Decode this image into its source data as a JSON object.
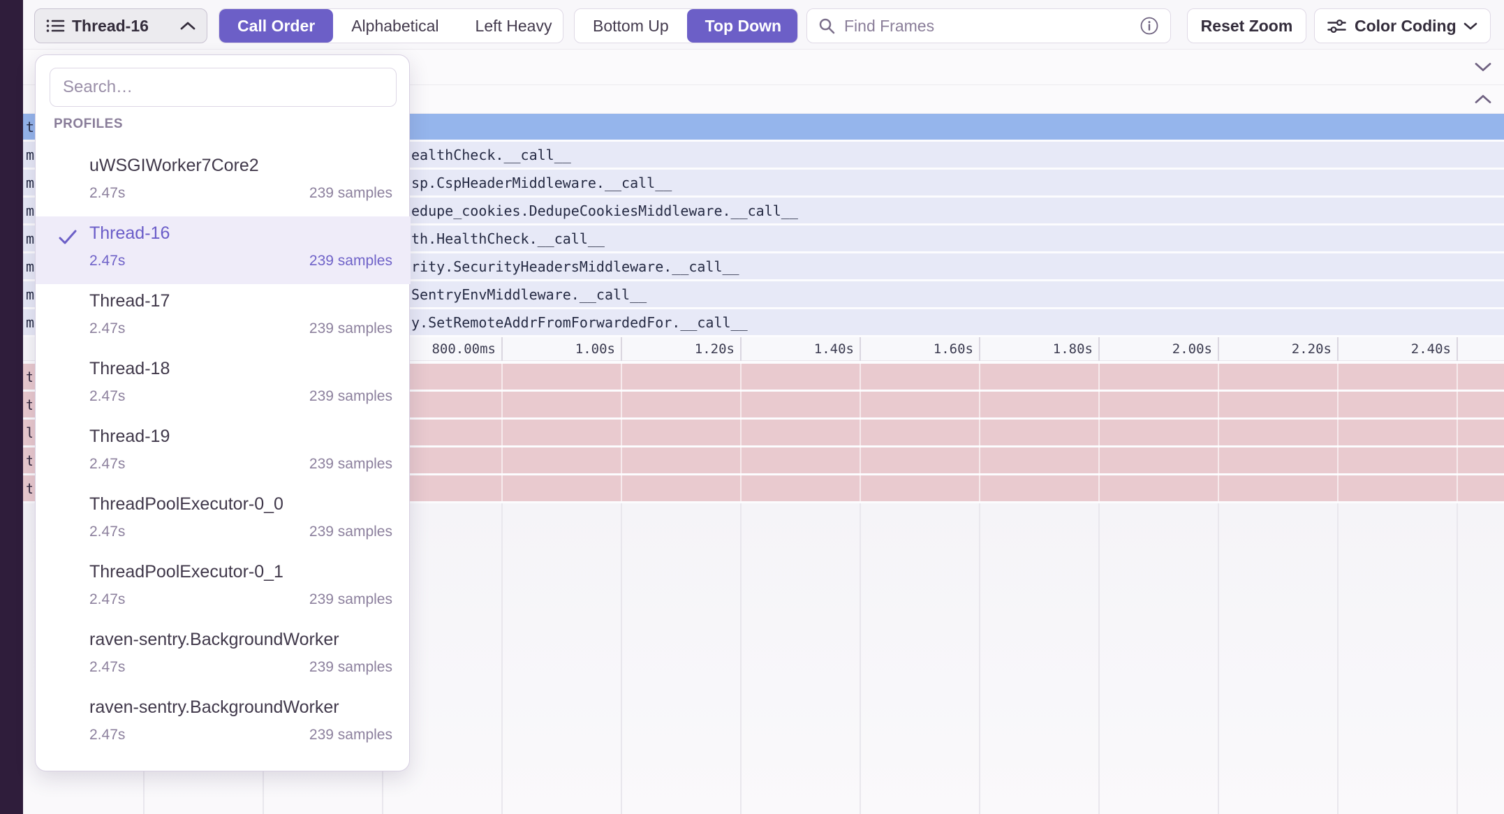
{
  "colors": {
    "accent": "#6C5FC7",
    "selected_frame_blue": "#95B5EC",
    "frame_row_lavender": "#E7E9F7",
    "pink_row": "#E9CACF",
    "sidebar_strip": "#2F1D3B"
  },
  "toolbar": {
    "thread_selector": {
      "label": "Thread-16"
    },
    "sort_control": {
      "options": [
        "Call Order",
        "Alphabetical",
        "Left Heavy"
      ],
      "selected": "Call Order"
    },
    "direction_control": {
      "options": [
        "Bottom Up",
        "Top Down"
      ],
      "selected": "Top Down"
    },
    "find_frames": {
      "placeholder": "Find Frames"
    },
    "reset_zoom_label": "Reset Zoom",
    "color_coding_label": "Color Coding"
  },
  "dropdown": {
    "search_placeholder": "Search…",
    "section_label": "PROFILES",
    "items": [
      {
        "name": "uWSGIWorker7Core2",
        "duration": "2.47s",
        "samples": "239 samples",
        "selected": false
      },
      {
        "name": "Thread-16",
        "duration": "2.47s",
        "samples": "239 samples",
        "selected": true
      },
      {
        "name": "Thread-17",
        "duration": "2.47s",
        "samples": "239 samples",
        "selected": false
      },
      {
        "name": "Thread-18",
        "duration": "2.47s",
        "samples": "239 samples",
        "selected": false
      },
      {
        "name": "Thread-19",
        "duration": "2.47s",
        "samples": "239 samples",
        "selected": false
      },
      {
        "name": "ThreadPoolExecutor-0_0",
        "duration": "2.47s",
        "samples": "239 samples",
        "selected": false
      },
      {
        "name": "ThreadPoolExecutor-0_1",
        "duration": "2.47s",
        "samples": "239 samples",
        "selected": false
      },
      {
        "name": "raven-sentry.BackgroundWorker",
        "duration": "2.47s",
        "samples": "239 samples",
        "selected": false
      },
      {
        "name": "raven-sentry.BackgroundWorker",
        "duration": "2.47s",
        "samples": "239 samples",
        "selected": false
      }
    ]
  },
  "flamegraph": {
    "selected_frame_fragment": "t",
    "frame_rows": [
      {
        "left_fragment": "m",
        "label": "ealthCheck.__call__"
      },
      {
        "left_fragment": "m",
        "label": "sp.CspHeaderMiddleware.__call__"
      },
      {
        "left_fragment": "m",
        "label": "edupe_cookies.DedupeCookiesMiddleware.__call__"
      },
      {
        "left_fragment": "m",
        "label": "th.HealthCheck.__call__"
      },
      {
        "left_fragment": "m",
        "label": "rity.SecurityHeadersMiddleware.__call__"
      },
      {
        "left_fragment": "m",
        "label": "SentryEnvMiddleware.__call__"
      },
      {
        "left_fragment": "m",
        "label": "y.SetRemoteAddrFromForwardedFor.__call__"
      }
    ],
    "time_axis_ticks": [
      "800.00ms",
      "1.00s",
      "1.20s",
      "1.40s",
      "1.60s",
      "1.80s",
      "2.00s",
      "2.20s",
      "2.40s"
    ],
    "pink_row_fragments": [
      "t",
      "t",
      "l",
      "t",
      "t"
    ]
  }
}
